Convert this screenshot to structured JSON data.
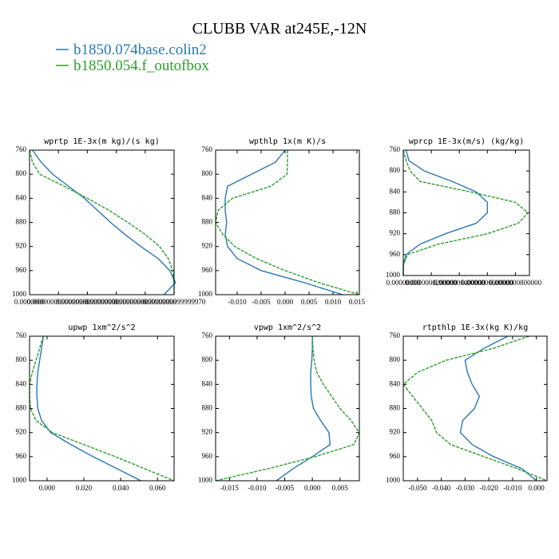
{
  "title": "CLUBB VAR at245E,-12N",
  "legend": [
    {
      "name": "b1850.074base.colin2",
      "color": "#2a78b6",
      "style": "solid"
    },
    {
      "name": "b1850.054.f_outofbox",
      "color": "#2ca02c",
      "style": "dashed"
    }
  ],
  "chart_data": [
    {
      "type": "line",
      "title": "wprtp  1E-3x(m kg)/(s kg)",
      "y": [
        760,
        780,
        800,
        820,
        840,
        860,
        880,
        900,
        920,
        940,
        960,
        980,
        1000
      ],
      "ylim": [
        1000,
        760
      ],
      "yticks": [
        760,
        800,
        840,
        880,
        920,
        960,
        1000
      ],
      "xlim": [
        0,
        0.1
      ],
      "xticks": [
        {
          "value": 0,
          "label": "0.0000000"
        },
        {
          "value": 0.02,
          "label": "0.0000000999999980"
        },
        {
          "value": 0.04,
          "label": "0.0000000999999990"
        },
        {
          "value": 0.06,
          "label": "0.0000000999999980"
        },
        {
          "value": 0.08,
          "label": "0.0000000999999990"
        },
        {
          "value": 0.1,
          "label": "0.0000000999999970"
        }
      ],
      "series": [
        {
          "color": "#2a78b6",
          "style": "solid",
          "values": [
            0.002,
            0.008,
            0.016,
            0.027,
            0.038,
            0.047,
            0.056,
            0.066,
            0.077,
            0.089,
            0.097,
            0.101,
            0.093
          ]
        },
        {
          "color": "#2ca02c",
          "style": "dashed",
          "values": [
            0.0,
            0.002,
            0.007,
            0.024,
            0.04,
            0.055,
            0.068,
            0.08,
            0.09,
            0.096,
            0.099,
            0.1,
            0.1
          ]
        }
      ]
    },
    {
      "type": "line",
      "title": "wpthlp  1x(m K)/s",
      "y": [
        760,
        780,
        800,
        820,
        840,
        860,
        880,
        900,
        920,
        940,
        960,
        980,
        1000
      ],
      "ylim": [
        1000,
        760
      ],
      "yticks": [
        760,
        800,
        840,
        880,
        920,
        960,
        1000
      ],
      "xlim": [
        -0.0145,
        0.0155
      ],
      "xticks": [
        {
          "value": -0.01,
          "label": "-0.010"
        },
        {
          "value": -0.005,
          "label": "-0.005"
        },
        {
          "value": 0,
          "label": "0.000"
        },
        {
          "value": 0.005,
          "label": "0.005"
        },
        {
          "value": 0.01,
          "label": "0.010"
        },
        {
          "value": 0.015,
          "label": "0.015"
        }
      ],
      "series": [
        {
          "color": "#2a78b6",
          "style": "solid",
          "values": [
            0.0,
            -0.002,
            -0.007,
            -0.012,
            -0.0125,
            -0.0125,
            -0.0122,
            -0.0125,
            -0.012,
            -0.01,
            -0.005,
            0.004,
            0.012
          ]
        },
        {
          "color": "#2ca02c",
          "style": "dashed",
          "values": [
            0.0005,
            0.0005,
            0.0004,
            -0.003,
            -0.011,
            -0.014,
            -0.0145,
            -0.013,
            -0.0105,
            -0.006,
            0.0,
            0.007,
            0.0155
          ]
        }
      ]
    },
    {
      "type": "line",
      "title": "wprcp  1E-3x(m/s) (kg/kg)",
      "y": [
        760,
        780,
        800,
        820,
        840,
        860,
        880,
        900,
        920,
        940,
        960,
        980,
        1000
      ],
      "ylim": [
        1000,
        760
      ],
      "yticks": [
        760,
        800,
        840,
        880,
        920,
        960,
        1000
      ],
      "xlim": [
        0,
        0.9
      ],
      "xticks": [
        {
          "value": 0,
          "label": "0.00000000"
        },
        {
          "value": 0.2,
          "label": "0.0000000200000"
        },
        {
          "value": 0.4,
          "label": "0.0000000400000"
        },
        {
          "value": 0.6,
          "label": "0.0000000600000"
        },
        {
          "value": 0.8,
          "label": "0.0000000800000"
        }
      ],
      "series": [
        {
          "color": "#2a78b6",
          "style": "solid",
          "values": [
            0.02,
            0.04,
            0.15,
            0.35,
            0.52,
            0.6,
            0.6,
            0.52,
            0.3,
            0.12,
            0.02,
            0.0,
            0.0
          ]
        },
        {
          "color": "#2ca02c",
          "style": "dashed",
          "values": [
            0.0,
            0.02,
            0.05,
            0.12,
            0.48,
            0.8,
            0.89,
            0.82,
            0.6,
            0.25,
            0.03,
            0.0,
            0.0
          ]
        }
      ]
    },
    {
      "type": "line",
      "title": "upwp   1xm^2/s^2",
      "y": [
        760,
        780,
        800,
        820,
        840,
        860,
        880,
        900,
        920,
        940,
        960,
        980,
        1000
      ],
      "ylim": [
        1000,
        760
      ],
      "yticks": [
        760,
        800,
        840,
        880,
        920,
        960,
        1000
      ],
      "xlim": [
        -0.0095,
        0.069
      ],
      "xticks": [
        {
          "value": 0,
          "label": "0.000"
        },
        {
          "value": 0.02,
          "label": "0.020"
        },
        {
          "value": 0.04,
          "label": "0.040"
        },
        {
          "value": 0.06,
          "label": "0.060"
        }
      ],
      "series": [
        {
          "color": "#2a78b6",
          "style": "solid",
          "values": [
            -0.002,
            -0.003,
            -0.004,
            -0.005,
            -0.0055,
            -0.0055,
            -0.005,
            -0.003,
            0.002,
            0.013,
            0.025,
            0.038,
            0.051
          ]
        },
        {
          "color": "#2ca02c",
          "style": "dashed",
          "values": [
            -0.002,
            -0.004,
            -0.006,
            -0.008,
            -0.0095,
            -0.0095,
            -0.009,
            -0.006,
            0.003,
            0.02,
            0.037,
            0.053,
            0.069
          ]
        }
      ]
    },
    {
      "type": "line",
      "title": "vpwp   1xm^2/s^2",
      "y": [
        760,
        780,
        800,
        820,
        840,
        860,
        880,
        900,
        920,
        940,
        960,
        980,
        1000
      ],
      "ylim": [
        1000,
        760
      ],
      "yticks": [
        760,
        800,
        840,
        880,
        920,
        960,
        1000
      ],
      "xlim": [
        -0.0175,
        0.0085
      ],
      "xticks": [
        {
          "value": -0.015,
          "label": "-0.015"
        },
        {
          "value": -0.01,
          "label": "-0.010"
        },
        {
          "value": -0.005,
          "label": "-0.005"
        },
        {
          "value": 0,
          "label": "0.000"
        },
        {
          "value": 0.005,
          "label": "0.005"
        }
      ],
      "series": [
        {
          "color": "#2a78b6",
          "style": "solid",
          "values": [
            0.0,
            0.0,
            -0.0001,
            -0.0003,
            -0.0003,
            -0.0002,
            0.0002,
            0.0015,
            0.003,
            0.0032,
            0.0,
            -0.0035,
            -0.0065
          ]
        },
        {
          "color": "#2ca02c",
          "style": "dashed",
          "values": [
            0.0,
            0.0001,
            0.0003,
            0.0008,
            0.002,
            0.0035,
            0.005,
            0.007,
            0.0085,
            0.0075,
            0.0005,
            -0.008,
            -0.0175
          ]
        }
      ]
    },
    {
      "type": "line",
      "title": "rtpthlp   1E-3x(kg K)/kg",
      "y": [
        760,
        780,
        800,
        820,
        840,
        860,
        880,
        900,
        920,
        940,
        960,
        980,
        1000
      ],
      "ylim": [
        1000,
        760
      ],
      "yticks": [
        760,
        800,
        840,
        880,
        920,
        960,
        1000
      ],
      "xlim": [
        -0.056,
        0.0045
      ],
      "xticks": [
        {
          "value": -0.05,
          "label": "-0.050"
        },
        {
          "value": -0.04,
          "label": "-0.040"
        },
        {
          "value": -0.03,
          "label": "-0.030"
        },
        {
          "value": -0.02,
          "label": "-0.020"
        },
        {
          "value": -0.01,
          "label": "-0.010"
        },
        {
          "value": 0,
          "label": "0.000"
        }
      ],
      "series": [
        {
          "color": "#2a78b6",
          "style": "solid",
          "values": [
            -0.012,
            -0.022,
            -0.03,
            -0.029,
            -0.027,
            -0.024,
            -0.026,
            -0.031,
            -0.032,
            -0.027,
            -0.018,
            -0.006,
            0.0
          ]
        },
        {
          "color": "#2ca02c",
          "style": "dashed",
          "values": [
            -0.003,
            -0.018,
            -0.038,
            -0.05,
            -0.056,
            -0.052,
            -0.048,
            -0.044,
            -0.042,
            -0.036,
            -0.022,
            -0.008,
            0.0045
          ]
        }
      ]
    }
  ]
}
